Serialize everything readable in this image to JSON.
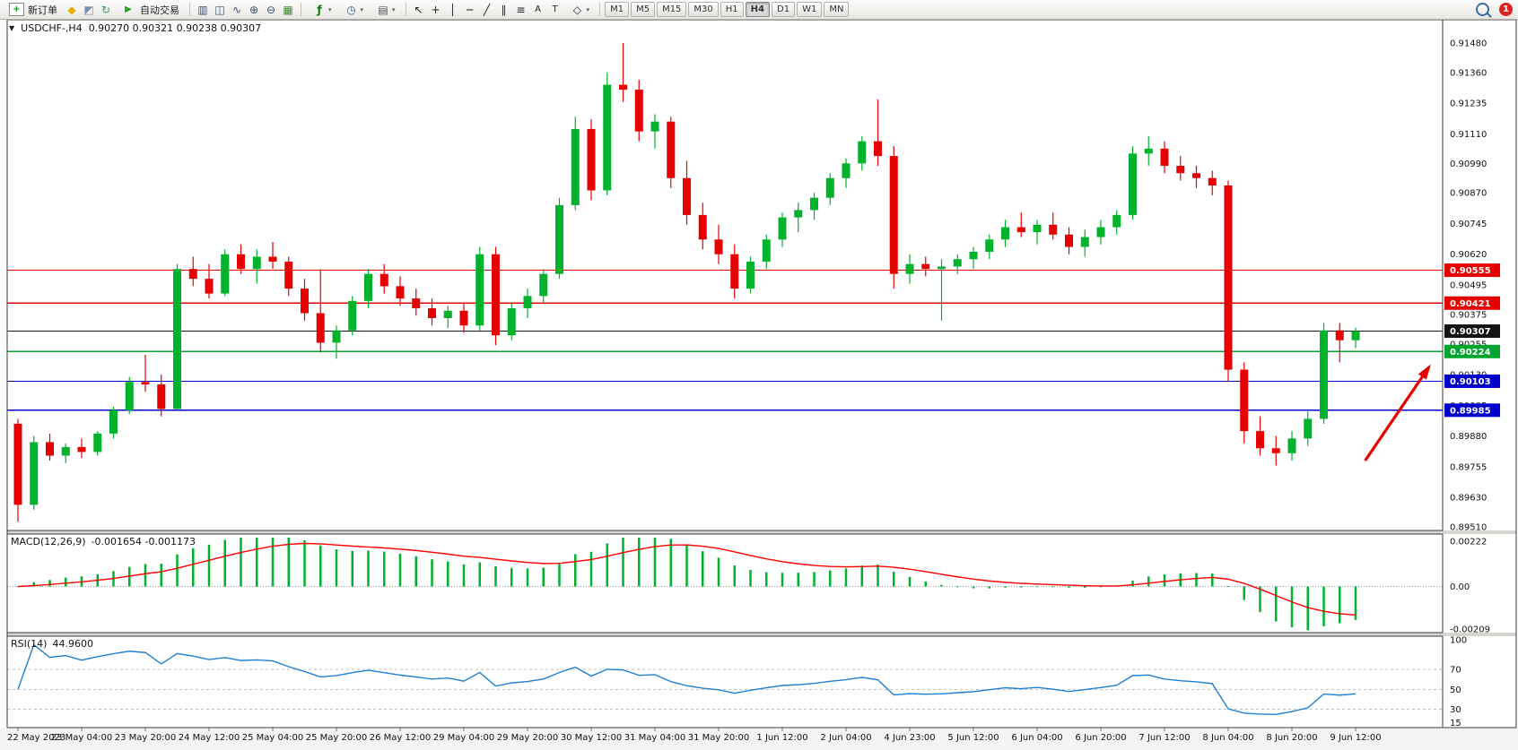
{
  "toolbar": {
    "new_order_label": "新订单",
    "auto_trading_label": "自动交易",
    "timeframes": [
      "M1",
      "M5",
      "M15",
      "M30",
      "H1",
      "H4",
      "D1",
      "W1",
      "MN"
    ],
    "active_timeframe": "H4",
    "notification_badge": "1",
    "icons": {
      "window_menu": "▼",
      "new_order_plus": "+",
      "metaeditor": "◆",
      "market": "◩",
      "refresh": "↻",
      "autotrade_play": "▶",
      "bars_mode": "▥",
      "candles_mode": "◫",
      "line_mode": "∿",
      "zoom_in": "⊕",
      "zoom_out": "⊖",
      "tile": "▦",
      "indicators": "ƒ",
      "periods_clock": "◷",
      "templates": "▤",
      "cursor": "↖",
      "crosshair": "+",
      "vline": "│",
      "hline": "─",
      "trendline": "╱",
      "channel": "∥",
      "fibo": "≡",
      "text_tool": "A",
      "label_tool": "T",
      "shapes": "◇",
      "caret": "▾"
    }
  },
  "chart": {
    "title": "USDCHF-,H4",
    "ohlc_text": "0.90270 0.90321 0.90238 0.90307",
    "up_color": "#00b22c",
    "down_color": "#e60000",
    "price_axis_ticks": [
      "0.91480",
      "0.91360",
      "0.91235",
      "0.91110",
      "0.90990",
      "0.90870",
      "0.90745",
      "0.90620",
      "0.90495",
      "0.90375",
      "0.90255",
      "0.90130",
      "0.90005",
      "0.89880",
      "0.89755",
      "0.89630",
      "0.89510"
    ],
    "hlines": [
      {
        "price": 0.90555,
        "label": "0.90555",
        "color": "#e60000"
      },
      {
        "price": 0.90421,
        "label": "0.90421",
        "color": "#e60000"
      },
      {
        "price": 0.90307,
        "label": "0.90307",
        "color": "#141414"
      },
      {
        "price": 0.90224,
        "label": "0.90224",
        "color": "#00a42e"
      },
      {
        "price": 0.90103,
        "label": "0.90103",
        "color": "#0000cc"
      },
      {
        "price": 0.89985,
        "label": "0.89985",
        "color": "#0000cc"
      }
    ],
    "time_labels": [
      "22 May 2023",
      "23 May 04:00",
      "23 May 20:00",
      "24 May 12:00",
      "25 May 04:00",
      "25 May 20:00",
      "26 May 12:00",
      "29 May 04:00",
      "29 May 20:00",
      "30 May 12:00",
      "31 May 04:00",
      "31 May 20:00",
      "1 Jun 12:00",
      "2 Jun 04:00",
      "4 Jun 23:00",
      "5 Jun 12:00",
      "6 Jun 04:00",
      "6 Jun 20:00",
      "7 Jun 12:00",
      "8 Jun 04:00",
      "8 Jun 20:00",
      "9 Jun 12:00"
    ],
    "arrow_annotation": {
      "color": "#e60000",
      "from_slot": 84.6,
      "from_price": 0.8978,
      "to_slot": 88.6,
      "to_price": 0.9016
    }
  },
  "macd_panel": {
    "label": "MACD(12,26,9)",
    "values_text": "-0.001654 -0.001173",
    "axis_ticks": [
      "0.00222",
      "0.00",
      "-0.00209"
    ],
    "histogram_color": "#00b22c",
    "signal_color": "#ff0000"
  },
  "rsi_panel": {
    "label": "RSI(14)",
    "value_text": "44.9600",
    "axis_ticks": [
      100,
      70,
      50,
      30,
      15
    ],
    "levels": [
      70,
      50,
      30
    ],
    "line_color": "#2080d0"
  },
  "chart_data": {
    "type": "candlestick",
    "symbol": "USDCHF-",
    "timeframe": "H4",
    "price_axis_range": [
      0.8951,
      0.9148
    ],
    "current_bar": {
      "open": 0.9027,
      "high": 0.90321,
      "low": 0.90238,
      "close": 0.90307
    },
    "indicators": [
      {
        "type": "MACD",
        "fast": 12,
        "slow": 26,
        "signal_period": 9,
        "main_value": -0.001654,
        "signal_value": -0.001173
      },
      {
        "type": "RSI",
        "period": 14,
        "value": 44.96
      }
    ],
    "candles": [
      [
        0.8993,
        0.8995,
        0.8953,
        0.896
      ],
      [
        0.896,
        0.8988,
        0.8958,
        0.89855
      ],
      [
        0.89855,
        0.8989,
        0.8978,
        0.898
      ],
      [
        0.898,
        0.8985,
        0.8977,
        0.89835
      ],
      [
        0.89835,
        0.8987,
        0.8979,
        0.89815
      ],
      [
        0.89815,
        0.899,
        0.898,
        0.8989
      ],
      [
        0.8989,
        0.9,
        0.8987,
        0.89985
      ],
      [
        0.89985,
        0.9012,
        0.8997,
        0.901
      ],
      [
        0.901,
        0.9021,
        0.9006,
        0.9009
      ],
      [
        0.9009,
        0.9013,
        0.8996,
        0.8999
      ],
      [
        0.8999,
        0.9058,
        0.89985,
        0.9056
      ],
      [
        0.9056,
        0.9061,
        0.9049,
        0.9052
      ],
      [
        0.9052,
        0.9058,
        0.9044,
        0.9046
      ],
      [
        0.9046,
        0.9064,
        0.9045,
        0.9062
      ],
      [
        0.9062,
        0.9066,
        0.9054,
        0.9056
      ],
      [
        0.9056,
        0.9064,
        0.905,
        0.9061
      ],
      [
        0.9061,
        0.9067,
        0.9056,
        0.9059
      ],
      [
        0.9059,
        0.9061,
        0.9045,
        0.9048
      ],
      [
        0.9048,
        0.9052,
        0.9035,
        0.9038
      ],
      [
        0.9038,
        0.9056,
        0.9022,
        0.9026
      ],
      [
        0.9026,
        0.9033,
        0.90195,
        0.9031
      ],
      [
        0.9031,
        0.9045,
        0.9029,
        0.9043
      ],
      [
        0.9043,
        0.9056,
        0.904,
        0.9054
      ],
      [
        0.9054,
        0.9058,
        0.9046,
        0.9049
      ],
      [
        0.9049,
        0.9053,
        0.9041,
        0.9044
      ],
      [
        0.9044,
        0.9048,
        0.9037,
        0.904
      ],
      [
        0.904,
        0.9044,
        0.9033,
        0.9036
      ],
      [
        0.9036,
        0.9041,
        0.9032,
        0.9039
      ],
      [
        0.9039,
        0.9042,
        0.903,
        0.9033
      ],
      [
        0.9033,
        0.9065,
        0.9031,
        0.9062
      ],
      [
        0.9062,
        0.9065,
        0.9025,
        0.9029
      ],
      [
        0.9029,
        0.9042,
        0.9027,
        0.904
      ],
      [
        0.904,
        0.9048,
        0.9036,
        0.9045
      ],
      [
        0.9045,
        0.9056,
        0.9042,
        0.9054
      ],
      [
        0.9054,
        0.9085,
        0.9052,
        0.9082
      ],
      [
        0.9082,
        0.9118,
        0.908,
        0.9113
      ],
      [
        0.9113,
        0.9117,
        0.9084,
        0.9088
      ],
      [
        0.9088,
        0.9136,
        0.9086,
        0.9131
      ],
      [
        0.9131,
        0.9148,
        0.9124,
        0.9129
      ],
      [
        0.9129,
        0.9133,
        0.9108,
        0.9112
      ],
      [
        0.9112,
        0.9119,
        0.9105,
        0.9116
      ],
      [
        0.9116,
        0.9118,
        0.9089,
        0.9093
      ],
      [
        0.9093,
        0.91,
        0.9074,
        0.9078
      ],
      [
        0.9078,
        0.9083,
        0.9064,
        0.9068
      ],
      [
        0.9068,
        0.9074,
        0.9058,
        0.9062
      ],
      [
        0.9062,
        0.9066,
        0.9044,
        0.9048
      ],
      [
        0.9048,
        0.9061,
        0.9046,
        0.9059
      ],
      [
        0.9059,
        0.907,
        0.9056,
        0.9068
      ],
      [
        0.9068,
        0.9079,
        0.9065,
        0.9077
      ],
      [
        0.9077,
        0.9083,
        0.9071,
        0.908
      ],
      [
        0.908,
        0.9087,
        0.9076,
        0.9085
      ],
      [
        0.9085,
        0.9095,
        0.9082,
        0.9093
      ],
      [
        0.9093,
        0.9101,
        0.9089,
        0.9099
      ],
      [
        0.9099,
        0.911,
        0.9096,
        0.9108
      ],
      [
        0.9108,
        0.9125,
        0.9098,
        0.9102
      ],
      [
        0.9102,
        0.9106,
        0.9048,
        0.9054
      ],
      [
        0.9054,
        0.9062,
        0.905,
        0.9058
      ],
      [
        0.9058,
        0.9061,
        0.9053,
        0.9056
      ],
      [
        0.9056,
        0.906,
        0.9035,
        0.9057
      ],
      [
        0.9057,
        0.9062,
        0.9054,
        0.906
      ],
      [
        0.906,
        0.9065,
        0.9056,
        0.9063
      ],
      [
        0.9063,
        0.907,
        0.906,
        0.9068
      ],
      [
        0.9068,
        0.9076,
        0.9065,
        0.9073
      ],
      [
        0.9073,
        0.9079,
        0.9069,
        0.9071
      ],
      [
        0.9071,
        0.9076,
        0.9066,
        0.9074
      ],
      [
        0.9074,
        0.9079,
        0.9068,
        0.907
      ],
      [
        0.907,
        0.9073,
        0.9062,
        0.9065
      ],
      [
        0.9065,
        0.9072,
        0.9061,
        0.9069
      ],
      [
        0.9069,
        0.9076,
        0.9066,
        0.9073
      ],
      [
        0.9073,
        0.908,
        0.907,
        0.9078
      ],
      [
        0.9078,
        0.9106,
        0.9076,
        0.9103
      ],
      [
        0.9103,
        0.911,
        0.9098,
        0.9105
      ],
      [
        0.9105,
        0.9108,
        0.9095,
        0.9098
      ],
      [
        0.9098,
        0.9102,
        0.9092,
        0.9095
      ],
      [
        0.9095,
        0.9098,
        0.9089,
        0.9093
      ],
      [
        0.9093,
        0.9096,
        0.9086,
        0.909
      ],
      [
        0.909,
        0.9092,
        0.901,
        0.9015
      ],
      [
        0.9015,
        0.9018,
        0.8985,
        0.899
      ],
      [
        0.899,
        0.8996,
        0.898,
        0.8983
      ],
      [
        0.8983,
        0.8988,
        0.8976,
        0.8981
      ],
      [
        0.8981,
        0.899,
        0.8978,
        0.8987
      ],
      [
        0.8987,
        0.8998,
        0.8984,
        0.8995
      ],
      [
        0.8995,
        0.9034,
        0.8993,
        0.9031
      ],
      [
        0.9031,
        0.9034,
        0.9018,
        0.9027
      ],
      [
        0.9027,
        0.90321,
        0.90238,
        0.90307
      ]
    ]
  }
}
